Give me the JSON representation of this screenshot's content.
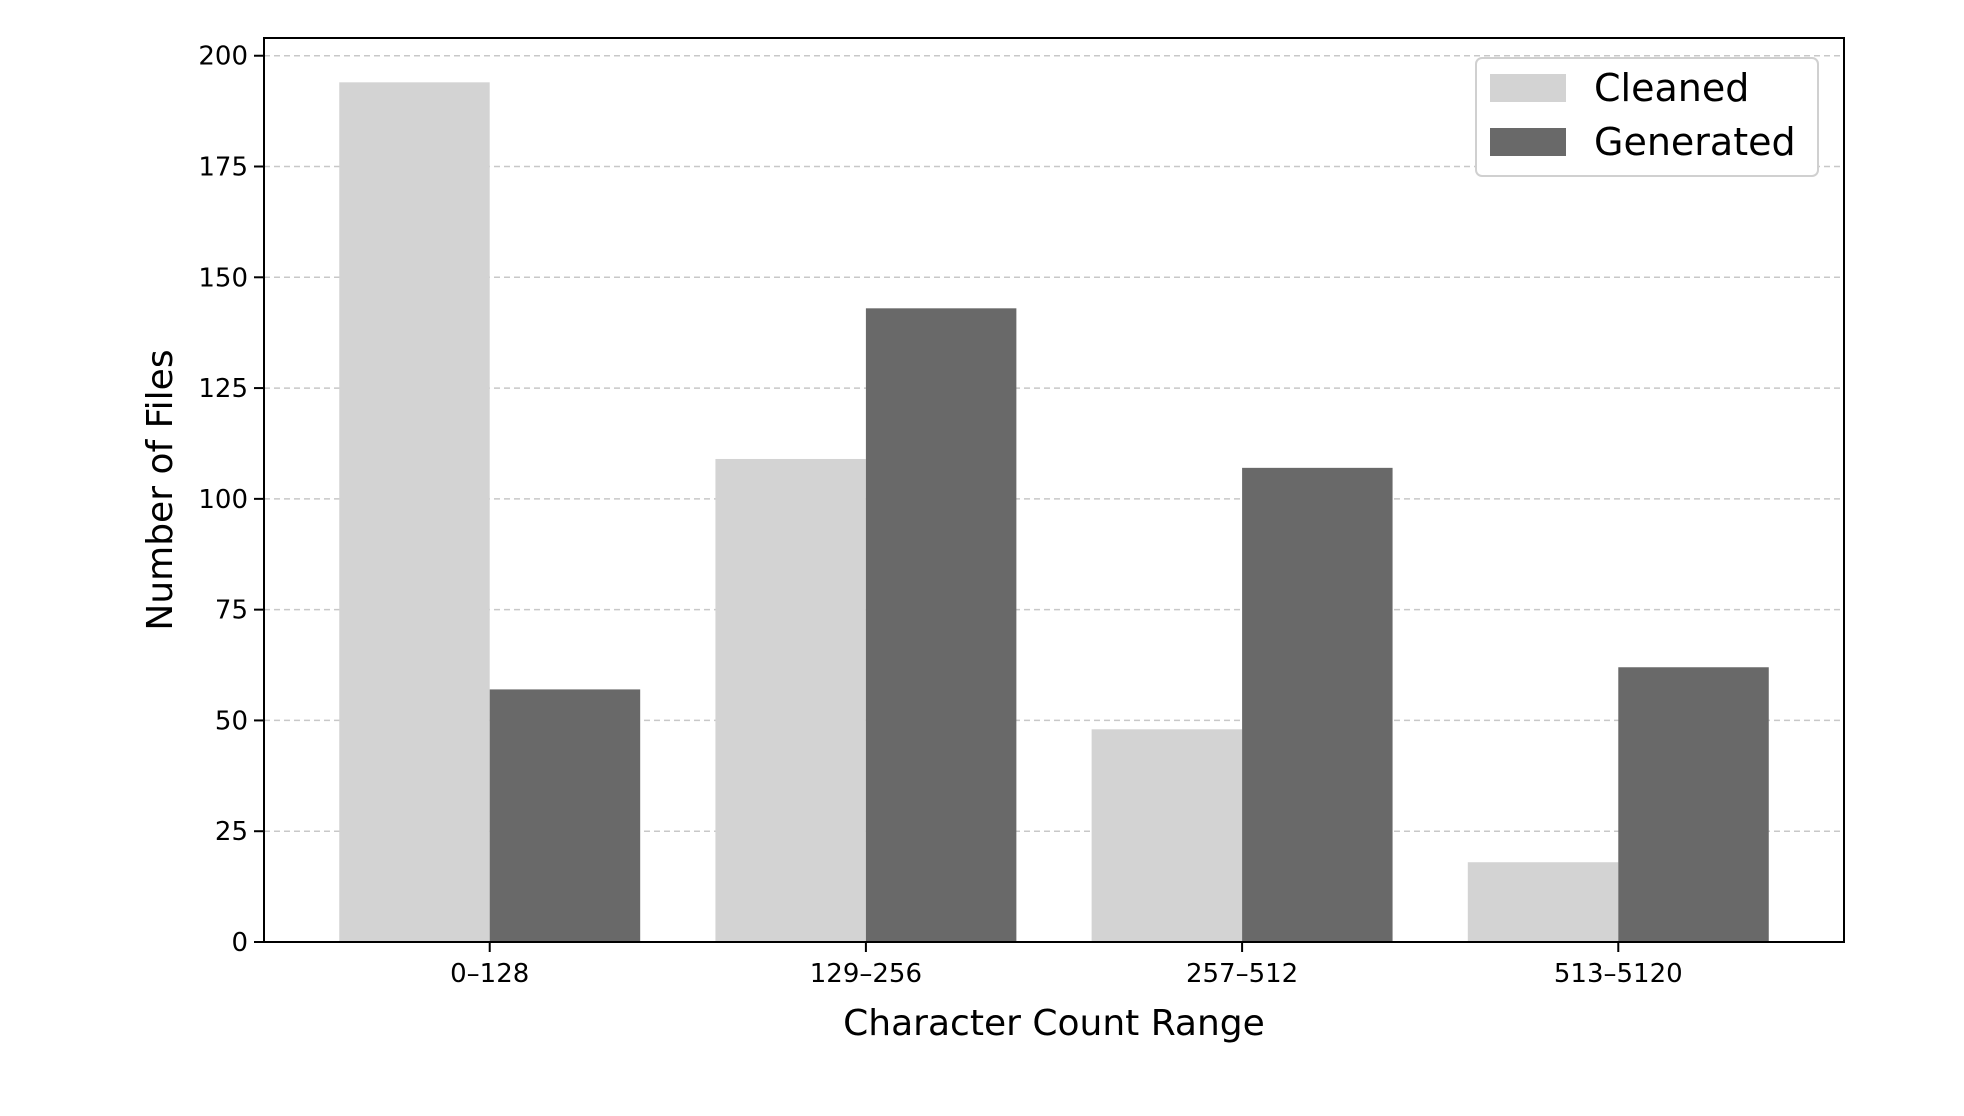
{
  "chart_data": {
    "type": "bar",
    "title": "",
    "xlabel": "Character Count Range",
    "ylabel": "Number of Files",
    "categories": [
      "0–128",
      "129–256",
      "257–512",
      "513–5120"
    ],
    "series": [
      {
        "name": "Cleaned",
        "values": [
          194,
          109,
          48,
          18
        ],
        "color": "#d3d3d3"
      },
      {
        "name": "Generated",
        "values": [
          57,
          143,
          107,
          62
        ],
        "color": "#696969"
      }
    ],
    "ylim": [
      0,
      204
    ],
    "yticks": [
      0,
      25,
      50,
      75,
      100,
      125,
      150,
      175,
      200
    ],
    "grid": "y-dashed",
    "legend_position": "top-right"
  }
}
